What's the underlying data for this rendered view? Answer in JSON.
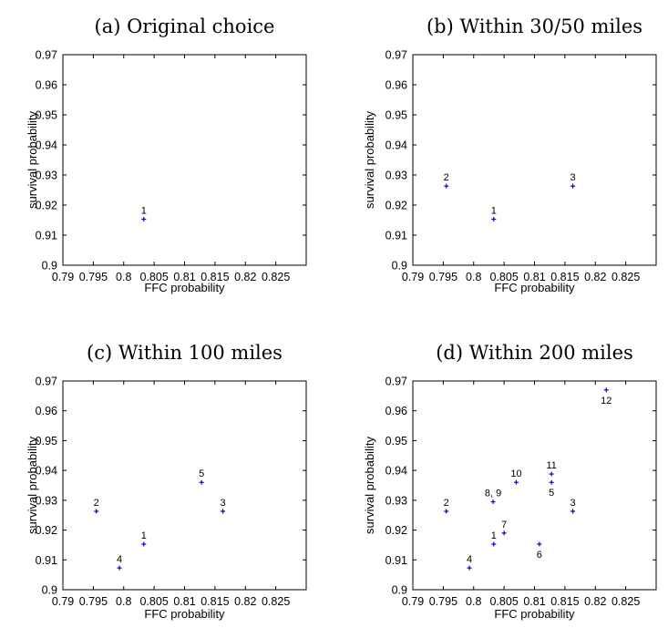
{
  "chart_data": [
    {
      "type": "scatter",
      "title": "(a) Original choice",
      "xlabel": "FFC probability",
      "ylabel": "survival probability",
      "xlim": [
        0.79,
        0.83
      ],
      "ylim": [
        0.9,
        0.97
      ],
      "xticks": [
        "0.79",
        "0.795",
        "0.8",
        "0.805",
        "0.81",
        "0.815",
        "0.82",
        "0.825"
      ],
      "yticks": [
        "0.9",
        "0.91",
        "0.92",
        "0.93",
        "0.94",
        "0.95",
        "0.96",
        "0.97"
      ],
      "marker_color": "#0000cc",
      "points": [
        {
          "label": "1",
          "x": 0.8033,
          "y": 0.9153,
          "label_pos": "above"
        }
      ]
    },
    {
      "type": "scatter",
      "title": "(b) Within 30/50 miles",
      "xlabel": "FFC probability",
      "ylabel": "survival probability",
      "xlim": [
        0.79,
        0.83
      ],
      "ylim": [
        0.9,
        0.97
      ],
      "xticks": [
        "0.79",
        "0.795",
        "0.8",
        "0.805",
        "0.81",
        "0.815",
        "0.82",
        "0.825"
      ],
      "yticks": [
        "0.9",
        "0.91",
        "0.92",
        "0.93",
        "0.94",
        "0.95",
        "0.96",
        "0.97"
      ],
      "marker_color": "#0000cc",
      "points": [
        {
          "label": "1",
          "x": 0.8033,
          "y": 0.9153,
          "label_pos": "above"
        },
        {
          "label": "2",
          "x": 0.7955,
          "y": 0.9263,
          "label_pos": "above"
        },
        {
          "label": "3",
          "x": 0.8163,
          "y": 0.9263,
          "label_pos": "above"
        }
      ]
    },
    {
      "type": "scatter",
      "title": "(c) Within 100 miles",
      "xlabel": "FFC probability",
      "ylabel": "survival probability",
      "xlim": [
        0.79,
        0.83
      ],
      "ylim": [
        0.9,
        0.97
      ],
      "xticks": [
        "0.79",
        "0.795",
        "0.8",
        "0.805",
        "0.81",
        "0.815",
        "0.82",
        "0.825"
      ],
      "yticks": [
        "0.9",
        "0.91",
        "0.92",
        "0.93",
        "0.94",
        "0.95",
        "0.96",
        "0.97"
      ],
      "marker_color": "#0000cc",
      "points": [
        {
          "label": "1",
          "x": 0.8033,
          "y": 0.9153,
          "label_pos": "above"
        },
        {
          "label": "2",
          "x": 0.7955,
          "y": 0.9263,
          "label_pos": "above"
        },
        {
          "label": "3",
          "x": 0.8163,
          "y": 0.9263,
          "label_pos": "above"
        },
        {
          "label": "4",
          "x": 0.7993,
          "y": 0.9073,
          "label_pos": "above"
        },
        {
          "label": "5",
          "x": 0.8128,
          "y": 0.936,
          "label_pos": "above"
        }
      ]
    },
    {
      "type": "scatter",
      "title": "(d) Within 200 miles",
      "xlabel": "FFC probability",
      "ylabel": "survival probability",
      "xlim": [
        0.79,
        0.83
      ],
      "ylim": [
        0.9,
        0.97
      ],
      "xticks": [
        "0.79",
        "0.795",
        "0.8",
        "0.805",
        "0.81",
        "0.815",
        "0.82",
        "0.825"
      ],
      "yticks": [
        "0.9",
        "0.91",
        "0.92",
        "0.93",
        "0.94",
        "0.95",
        "0.96",
        "0.97"
      ],
      "marker_color": "#0000cc",
      "points": [
        {
          "label": "1",
          "x": 0.8033,
          "y": 0.9153,
          "label_pos": "above"
        },
        {
          "label": "2",
          "x": 0.7955,
          "y": 0.9263,
          "label_pos": "above"
        },
        {
          "label": "3",
          "x": 0.8163,
          "y": 0.9263,
          "label_pos": "above"
        },
        {
          "label": "4",
          "x": 0.7993,
          "y": 0.9073,
          "label_pos": "above"
        },
        {
          "label": "5",
          "x": 0.8128,
          "y": 0.936,
          "label_pos": "below"
        },
        {
          "label": "6",
          "x": 0.8108,
          "y": 0.9153,
          "label_pos": "below"
        },
        {
          "label": "7",
          "x": 0.805,
          "y": 0.919,
          "label_pos": "above"
        },
        {
          "label": "8, 9",
          "x": 0.8032,
          "y": 0.9295,
          "label_pos": "above"
        },
        {
          "label": "10",
          "x": 0.807,
          "y": 0.936,
          "label_pos": "above"
        },
        {
          "label": "11",
          "x": 0.8128,
          "y": 0.9388,
          "label_pos": "above"
        },
        {
          "label": "12",
          "x": 0.8218,
          "y": 0.967,
          "label_pos": "below"
        }
      ]
    }
  ]
}
